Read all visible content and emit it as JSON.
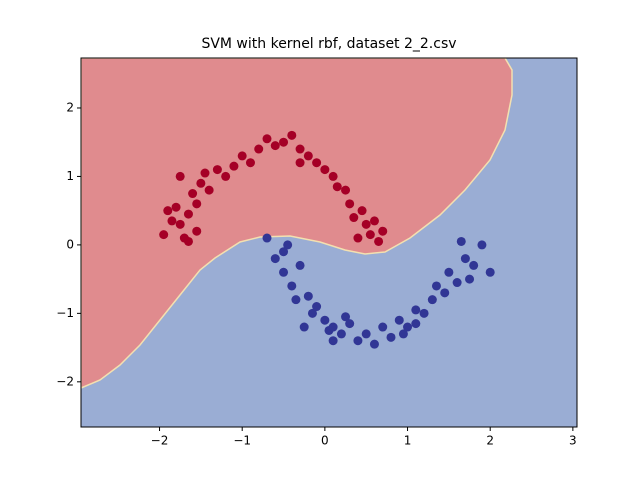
{
  "chart_data": {
    "type": "scatter",
    "title": "SVM with kernel rbf, dataset 2_2.csv",
    "xlim": [
      -2.95,
      3.05
    ],
    "ylim": [
      -2.66,
      2.73
    ],
    "xticks": [
      {
        "value": -2,
        "label": "−2"
      },
      {
        "value": -1,
        "label": "−1"
      },
      0,
      1,
      2,
      3
    ],
    "yticks": [
      {
        "value": -2,
        "label": "−2"
      },
      {
        "value": -1,
        "label": "−1"
      },
      0,
      1,
      2
    ],
    "series": [
      {
        "color": "#a50026",
        "x": [
          -1.95,
          -1.85,
          -1.8,
          -1.75,
          -1.7,
          -1.65,
          -1.6,
          -1.55,
          -1.5,
          -1.45,
          -1.4,
          -1.3,
          -1.2,
          -1.1,
          -1.0,
          -0.9,
          -0.8,
          -0.7,
          -0.6,
          -0.5,
          -0.4,
          -0.3,
          -0.2,
          -0.1,
          0.0,
          0.1,
          0.15,
          0.25,
          0.3,
          0.35,
          0.45,
          0.5,
          0.55,
          0.6,
          0.65,
          0.7,
          -1.75,
          -1.55,
          -0.3,
          -1.9,
          -1.65,
          0.4
        ],
        "values": [
          0.15,
          0.35,
          0.55,
          0.3,
          0.1,
          0.45,
          0.75,
          0.6,
          0.9,
          1.05,
          0.8,
          1.1,
          1.0,
          1.15,
          1.3,
          1.2,
          1.4,
          1.55,
          1.45,
          1.5,
          1.6,
          1.4,
          1.3,
          1.2,
          1.1,
          1.0,
          0.85,
          0.8,
          0.6,
          0.4,
          0.5,
          0.3,
          0.15,
          0.35,
          0.05,
          0.2,
          1.0,
          0.2,
          1.2,
          0.5,
          0.05,
          0.1
        ]
      },
      {
        "color": "#313695",
        "x": [
          -0.7,
          -0.6,
          -0.5,
          -0.45,
          -0.4,
          -0.35,
          -0.3,
          -0.2,
          -0.15,
          -0.1,
          0.0,
          0.05,
          0.1,
          0.2,
          0.3,
          0.4,
          0.5,
          0.6,
          0.7,
          0.8,
          0.9,
          1.0,
          1.1,
          1.2,
          1.3,
          1.35,
          1.45,
          1.5,
          1.6,
          1.7,
          1.75,
          1.8,
          1.9,
          2.0,
          1.65,
          0.1,
          -0.5,
          0.95,
          0.25,
          -0.25,
          1.1
        ],
        "values": [
          0.1,
          -0.2,
          -0.4,
          0.0,
          -0.6,
          -0.8,
          -0.3,
          -0.75,
          -1.0,
          -0.9,
          -1.1,
          -1.25,
          -1.2,
          -1.3,
          -1.15,
          -1.4,
          -1.3,
          -1.45,
          -1.2,
          -1.35,
          -1.1,
          -1.2,
          -0.95,
          -1.0,
          -0.8,
          -0.6,
          -0.7,
          -0.4,
          -0.55,
          -0.2,
          -0.5,
          -0.3,
          0.0,
          -0.4,
          0.05,
          -1.4,
          -0.1,
          -1.3,
          -1.05,
          -1.2,
          -1.15
        ]
      }
    ]
  }
}
